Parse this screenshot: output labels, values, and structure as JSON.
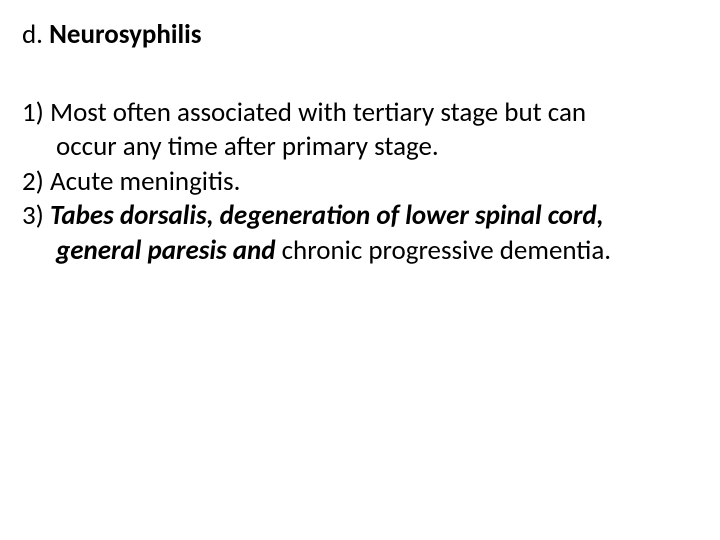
{
  "heading": {
    "label": "d. ",
    "title": "Neurosyphilis"
  },
  "items": {
    "i1_num": "1) ",
    "i1_line1_rest": "Most often associated with tertiary stage but can",
    "i1_line2": "occur any time after primary stage.",
    "i2_num": "2) ",
    "i2_rest": "Acute meningitis.",
    "i3_num": "3) ",
    "i3_line1_bi": "Tabes dorsalis, degeneration of lower spinal cord,",
    "i3_line2_bi": "general paresis and ",
    "i3_line2_rest": "chronic progressive dementia."
  },
  "colors": {
    "text": "#000000",
    "background": "#ffffff"
  },
  "typography": {
    "font_family": "Calibri",
    "body_fontsize_pt": 20,
    "heading_fontsize_pt": 20
  }
}
